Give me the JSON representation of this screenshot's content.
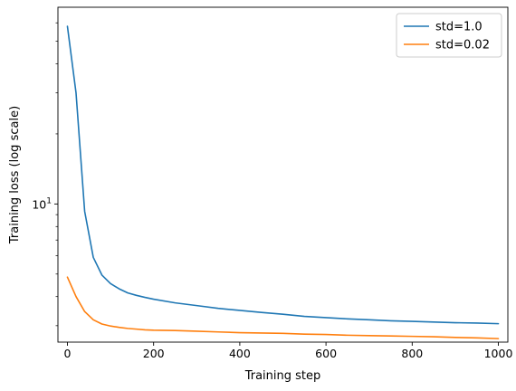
{
  "chart_data": {
    "type": "line",
    "xlabel": "Training step",
    "ylabel": "Training loss (log scale)",
    "yscale": "log",
    "xlim": [
      -22,
      1022
    ],
    "ylim": [
      2.55,
      70
    ],
    "grid": false,
    "legend_position": "top-right",
    "x_ticks": [
      {
        "value": 0,
        "label": "0"
      },
      {
        "value": 200,
        "label": "200"
      },
      {
        "value": 400,
        "label": "400"
      },
      {
        "value": 600,
        "label": "600"
      },
      {
        "value": 800,
        "label": "800"
      },
      {
        "value": 1000,
        "label": "1000"
      }
    ],
    "y_major_ticks": [
      {
        "value": 10,
        "base": "10",
        "exp": "1"
      }
    ],
    "y_minor_ticks": [
      3,
      4,
      5,
      6,
      7,
      8,
      9,
      20,
      30,
      40,
      50,
      60
    ],
    "series": [
      {
        "name": "std=1.0",
        "color": "#1f77b4",
        "x": [
          0,
          20,
          40,
          60,
          80,
          100,
          120,
          140,
          160,
          180,
          200,
          250,
          300,
          350,
          400,
          450,
          500,
          550,
          600,
          650,
          700,
          750,
          800,
          850,
          900,
          950,
          1000
        ],
        "y": [
          58,
          30,
          9.3,
          5.9,
          4.95,
          4.55,
          4.32,
          4.15,
          4.05,
          3.97,
          3.9,
          3.76,
          3.66,
          3.56,
          3.49,
          3.42,
          3.36,
          3.29,
          3.25,
          3.21,
          3.18,
          3.15,
          3.13,
          3.11,
          3.09,
          3.08,
          3.06
        ]
      },
      {
        "name": "std=0.02",
        "color": "#ff7f0e",
        "x": [
          0,
          20,
          40,
          60,
          80,
          100,
          120,
          140,
          160,
          180,
          200,
          250,
          300,
          350,
          400,
          450,
          500,
          550,
          600,
          650,
          700,
          750,
          800,
          850,
          900,
          950,
          1000
        ],
        "y": [
          4.85,
          4.0,
          3.45,
          3.18,
          3.05,
          2.99,
          2.95,
          2.92,
          2.9,
          2.88,
          2.87,
          2.86,
          2.84,
          2.82,
          2.8,
          2.79,
          2.78,
          2.76,
          2.75,
          2.73,
          2.72,
          2.71,
          2.7,
          2.69,
          2.67,
          2.66,
          2.64
        ]
      }
    ]
  }
}
